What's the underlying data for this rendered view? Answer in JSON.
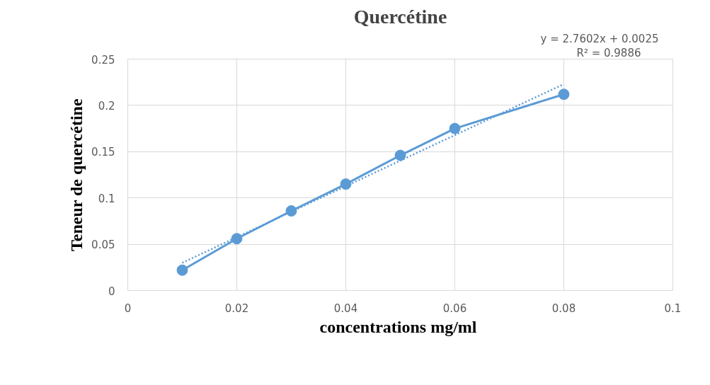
{
  "chart_data": {
    "type": "line",
    "title": "Quercétine",
    "xlabel": "concentrations  mg/ml",
    "ylabel": "Teneur de quercétine",
    "annotations": [
      "y = 2.7602x + 0.0025",
      "R² = 0.9886"
    ],
    "x": [
      0.01,
      0.02,
      0.03,
      0.04,
      0.05,
      0.06,
      0.08
    ],
    "series": [
      {
        "color": "#5b9bd5",
        "values": [
          0.022,
          0.056,
          0.086,
          0.115,
          0.146,
          0.175,
          0.212
        ],
        "marker": "circle",
        "line_style": "solid"
      },
      {
        "type": "line",
        "color": "#5b9bd5",
        "x": [
          0.01,
          0.08
        ],
        "values": [
          0.03,
          0.223
        ],
        "marker": "none",
        "line_style": "dotted"
      }
    ],
    "xlim": [
      0,
      0.1
    ],
    "xticks": [
      0,
      0.02,
      0.04,
      0.06,
      0.08,
      0.1
    ],
    "ylim": [
      0,
      0.25
    ],
    "yticks": [
      0,
      0.05,
      0.1,
      0.15,
      0.2,
      0.25
    ],
    "grid": true
  }
}
